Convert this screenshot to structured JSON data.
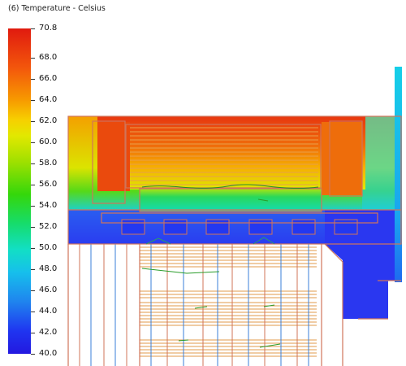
{
  "title": "(6) Temperature - Celsius",
  "legend": {
    "ticks": [
      "70.8",
      "68.0",
      "66.0",
      "64.0",
      "62.0",
      "60.0",
      "58.0",
      "56.0",
      "54.0",
      "52.0",
      "50.0",
      "48.0",
      "46.0",
      "44.0",
      "42.0",
      "40.0"
    ],
    "min": 40.0,
    "max": 70.8
  },
  "colors": {
    "hot": "#e41c0c",
    "warm": "#f7a100",
    "mid": "#26d94a",
    "cool": "#1fc7ee",
    "cold": "#1f33f0",
    "outline": "#d0745a"
  }
}
